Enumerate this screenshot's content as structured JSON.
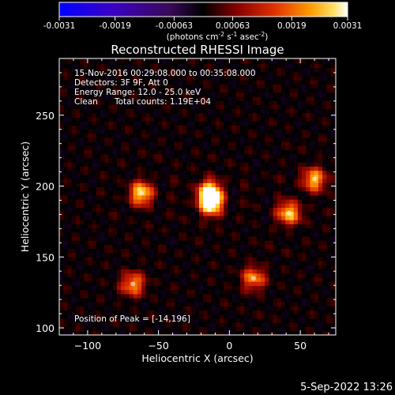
{
  "colorbar": {
    "ticks": [
      "-0.0031",
      "-0.0019",
      "-0.00063",
      "0.00063",
      "0.0019",
      "0.0031"
    ],
    "tick_values": [
      -0.0031,
      -0.0019,
      -0.00063,
      0.00063,
      0.0019,
      0.0031
    ],
    "range": [
      -0.0031,
      0.0031
    ],
    "unit_main": "(photons cm",
    "unit_exp1": "-2",
    "unit_mid": " s",
    "unit_exp2": "-1",
    "unit_end": " asec",
    "unit_exp3": "-2",
    "unit_close": ")"
  },
  "chart_data": {
    "type": "heatmap",
    "title": "Reconstructed RHESSI Image",
    "xlabel": "Heliocentric X (arcsec)",
    "ylabel": "Heliocentric Y (arcsec)",
    "xlim": [
      -120,
      75
    ],
    "ylim": [
      95,
      290
    ],
    "x_ticks": [
      -100,
      -50,
      0,
      50
    ],
    "y_ticks": [
      100,
      150,
      200,
      250
    ],
    "x_tick_labels": [
      "−100",
      "−50",
      "0",
      "50"
    ],
    "y_tick_labels": [
      "100",
      "150",
      "200",
      "250"
    ],
    "colormap": "RHESSI red-temperature (blue-purple negative, black near zero, red-orange-yellow-white positive)",
    "sources": [
      {
        "x": -14,
        "y": 196,
        "value": 0.0031
      },
      {
        "x": -13,
        "y": 187,
        "value": 0.0027
      },
      {
        "x": -62,
        "y": 195,
        "value": 0.0026
      },
      {
        "x": 42,
        "y": 181,
        "value": 0.0024
      },
      {
        "x": 60,
        "y": 205,
        "value": 0.0023
      },
      {
        "x": -68,
        "y": 131,
        "value": 0.0021
      },
      {
        "x": 17,
        "y": 135,
        "value": 0.002
      }
    ],
    "annotations": {
      "time": "15-Nov-2016 00:29:08.000 to 00:35:08.000",
      "detectors": "Detectors: 3F 9F, Att 0",
      "energy": "Energy Range: 12.0 - 25.0 keV",
      "method": "Clean",
      "counts": "Total counts: 1.19E+04",
      "peak": "Position of Peak = [-14,196]"
    }
  },
  "footer": {
    "date": "5-Sep-2022 13:26"
  }
}
